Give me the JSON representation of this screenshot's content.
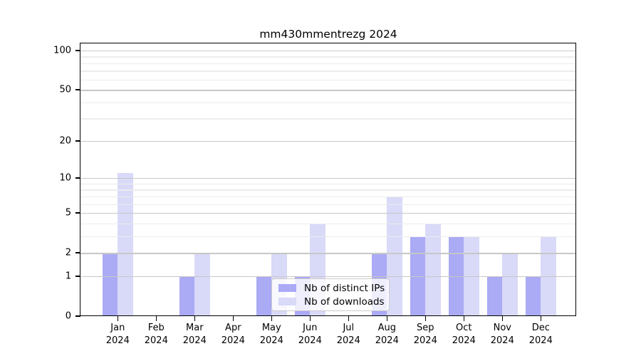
{
  "chart_data": {
    "type": "bar",
    "title": "mm430mmentrezg 2024",
    "x_year": "2024",
    "categories": [
      "Jan",
      "Feb",
      "Mar",
      "Apr",
      "May",
      "Jun",
      "Jul",
      "Aug",
      "Sep",
      "Oct",
      "Nov",
      "Dec"
    ],
    "series": [
      {
        "name": "Nb of distinct IPs",
        "color": "#aaaaf5",
        "values": [
          2,
          0,
          1,
          0,
          1,
          1,
          0,
          2,
          3,
          3,
          1,
          1
        ]
      },
      {
        "name": "Nb of downloads",
        "color": "#d9d9f8",
        "values": [
          11,
          0,
          2,
          0,
          2,
          4,
          0,
          7,
          4,
          3,
          2,
          3
        ]
      }
    ],
    "y_ticks": [
      100,
      50,
      20,
      10,
      5,
      2,
      1,
      0
    ],
    "y_minor_gridlines": [
      3,
      4,
      6,
      7,
      8,
      9,
      30,
      40,
      60,
      70,
      80,
      90
    ],
    "yscale": "log10(1+v)",
    "ylim": [
      0,
      115
    ],
    "grid": true,
    "legend_position": "lower center-left, inside plot"
  }
}
